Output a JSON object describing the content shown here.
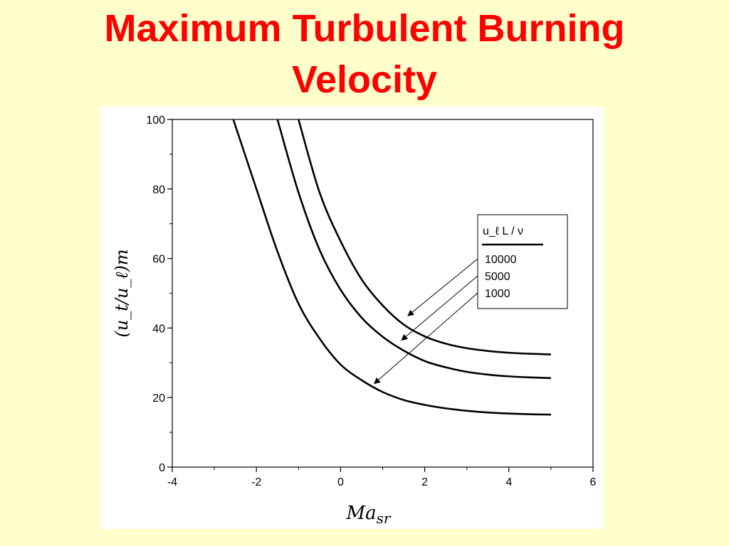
{
  "slide": {
    "title_line1": "Maximum Turbulent Burning",
    "title_line2": "Velocity"
  },
  "chart_data": {
    "type": "line",
    "xlabel_main": "Ma",
    "xlabel_sub": "sr",
    "ylabel": "(u_t/u_ℓ)m",
    "xlim": [
      -4,
      6
    ],
    "ylim": [
      0,
      100
    ],
    "x_ticks": [
      -4,
      -2,
      0,
      2,
      4,
      6
    ],
    "y_ticks": [
      0,
      20,
      40,
      60,
      80,
      100
    ],
    "grid": false,
    "legend": {
      "title": "u_ℓ L / ν",
      "position": "right",
      "entries": [
        "10000",
        "5000",
        "1000"
      ]
    },
    "series": [
      {
        "name": "10000",
        "x": [
          -1.0,
          -0.5,
          0.0,
          0.5,
          1.0,
          1.5,
          2.0,
          2.5,
          3.0,
          3.5,
          4.0,
          4.5,
          5.0
        ],
        "y": [
          100,
          79,
          65,
          54,
          46.5,
          41,
          37.6,
          35.5,
          34.2,
          33.4,
          32.9,
          32.6,
          32.4
        ]
      },
      {
        "name": "5000",
        "x": [
          -1.5,
          -1.0,
          -0.5,
          0.0,
          0.5,
          1.0,
          1.5,
          2.0,
          2.5,
          3.0,
          3.5,
          4.0,
          4.5,
          5.0
        ],
        "y": [
          100,
          79,
          62.5,
          51,
          43,
          37.5,
          33.5,
          30.5,
          28.7,
          27.4,
          26.6,
          26.1,
          25.8,
          25.6
        ]
      },
      {
        "name": "1000",
        "x": [
          -2.55,
          -2.0,
          -1.5,
          -1.0,
          -0.5,
          0.0,
          0.5,
          1.0,
          1.5,
          2.0,
          2.5,
          3.0,
          3.5,
          4.0,
          4.5,
          5.0
        ],
        "y": [
          100,
          80,
          62,
          47,
          37,
          29.5,
          25,
          21.6,
          19.3,
          17.9,
          16.9,
          16.2,
          15.7,
          15.4,
          15.2,
          15.1
        ]
      }
    ],
    "annotations": [
      {
        "series": "10000",
        "target": [
          1.6,
          43.5
        ]
      },
      {
        "series": "5000",
        "target": [
          1.45,
          36.5
        ]
      },
      {
        "series": "1000",
        "target": [
          0.8,
          24.0
        ]
      }
    ]
  }
}
